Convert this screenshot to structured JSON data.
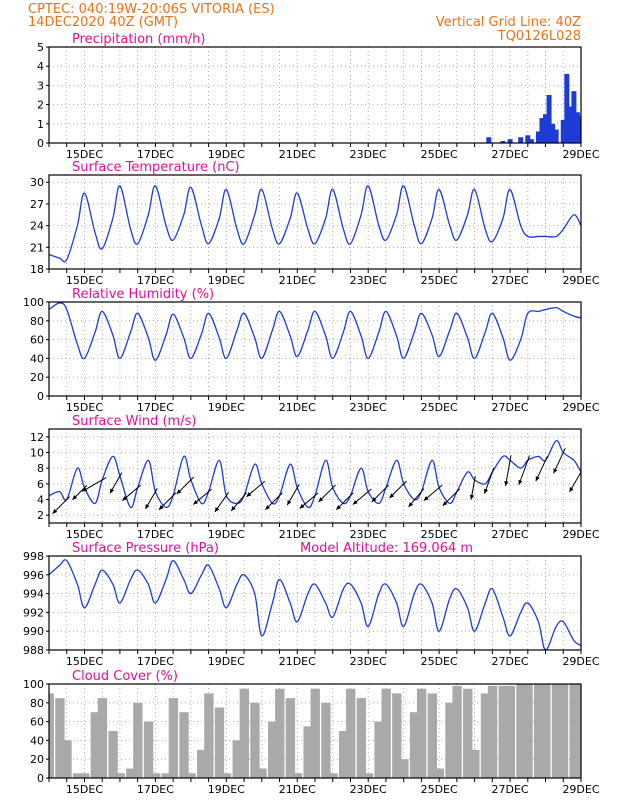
{
  "header": {
    "line1": "CPTEC:  040:19W-20:06S  VITORIA (ES)",
    "line2": "14DEC2020 40Z (GMT)",
    "grid_note": "Vertical Grid Line: 40Z",
    "product": "TQ0126L028"
  },
  "colors": {
    "series": "#1f3bd6",
    "cloud": "#a9a9a9",
    "grid": "#9a9a9a",
    "title": "#e0109a",
    "header": "#e8731a"
  },
  "chart_data": [
    {
      "type": "bar",
      "id": "precip",
      "title": "Precipitation (mm/h)",
      "ylim": [
        0,
        5
      ],
      "yticks": [
        0,
        1,
        2,
        3,
        4,
        5
      ],
      "xlim": [
        14,
        29
      ],
      "xticks": [
        15,
        17,
        19,
        21,
        23,
        25,
        27,
        29
      ],
      "xticklabels": [
        "15DEC",
        "17DEC",
        "19DEC",
        "21DEC",
        "23DEC",
        "25DEC",
        "27DEC",
        "29DEC"
      ],
      "x": [
        26.4,
        26.8,
        27.0,
        27.3,
        27.5,
        27.6,
        27.8,
        27.9,
        28.0,
        28.1,
        28.2,
        28.3,
        28.5,
        28.6,
        28.7,
        28.8,
        28.9,
        29.0
      ],
      "values": [
        0.3,
        0.1,
        0.2,
        0.3,
        0.4,
        0.2,
        0.6,
        1.3,
        1.5,
        2.5,
        1.0,
        0.7,
        1.2,
        3.6,
        1.9,
        2.7,
        1.6,
        1.4
      ]
    },
    {
      "type": "line",
      "id": "temp",
      "title": "Surface Temperature (nC)",
      "ylim": [
        18,
        31
      ],
      "yticks": [
        18,
        21,
        24,
        27,
        30
      ],
      "xlim": [
        14,
        29
      ],
      "xticks": [
        15,
        17,
        19,
        21,
        23,
        25,
        27,
        29
      ],
      "xticklabels": [
        "15DEC",
        "17DEC",
        "19DEC",
        "21DEC",
        "23DEC",
        "25DEC",
        "27DEC",
        "29DEC"
      ],
      "x": [
        14.0,
        14.3,
        14.5,
        14.8,
        15.0,
        15.3,
        15.5,
        15.8,
        16.0,
        16.3,
        16.5,
        16.8,
        17.0,
        17.3,
        17.5,
        17.8,
        18.0,
        18.3,
        18.5,
        18.8,
        19.0,
        19.3,
        19.5,
        19.8,
        20.0,
        20.3,
        20.5,
        20.8,
        21.0,
        21.3,
        21.5,
        21.8,
        22.0,
        22.3,
        22.5,
        22.8,
        23.0,
        23.3,
        23.5,
        23.8,
        24.0,
        24.3,
        24.5,
        24.8,
        25.0,
        25.3,
        25.5,
        25.8,
        26.0,
        26.3,
        26.5,
        26.8,
        27.0,
        27.3,
        27.5,
        27.8,
        28.0,
        28.3,
        28.5,
        28.8,
        29.0
      ],
      "values": [
        20.0,
        19.5,
        19.3,
        24.0,
        28.5,
        23.0,
        20.8,
        25.0,
        29.5,
        23.5,
        21.5,
        25.5,
        29.5,
        24.0,
        22.0,
        25.5,
        29.3,
        24.0,
        21.5,
        25.0,
        29.0,
        23.5,
        21.5,
        25.5,
        29.0,
        23.5,
        21.5,
        25.0,
        28.5,
        23.5,
        21.5,
        25.0,
        29.0,
        23.5,
        21.5,
        25.5,
        29.5,
        24.0,
        22.0,
        25.5,
        29.5,
        24.0,
        21.5,
        25.0,
        29.0,
        24.0,
        22.0,
        25.5,
        29.0,
        23.5,
        21.8,
        25.0,
        29.0,
        24.0,
        22.5,
        22.5,
        22.5,
        22.5,
        23.5,
        25.5,
        24.0
      ]
    },
    {
      "type": "line",
      "id": "rh",
      "title": "Relative Humidity (%)",
      "ylim": [
        0,
        100
      ],
      "yticks": [
        0,
        20,
        40,
        60,
        80,
        100
      ],
      "xlim": [
        14,
        29
      ],
      "xticks": [
        15,
        17,
        19,
        21,
        23,
        25,
        27,
        29
      ],
      "xticklabels": [
        "15DEC",
        "17DEC",
        "19DEC",
        "21DEC",
        "23DEC",
        "25DEC",
        "27DEC",
        "29DEC"
      ],
      "x": [
        14.0,
        14.3,
        14.5,
        14.8,
        15.0,
        15.3,
        15.5,
        15.8,
        16.0,
        16.3,
        16.5,
        16.8,
        17.0,
        17.3,
        17.5,
        17.8,
        18.0,
        18.3,
        18.5,
        18.8,
        19.0,
        19.3,
        19.5,
        19.8,
        20.0,
        20.3,
        20.5,
        20.8,
        21.0,
        21.3,
        21.5,
        21.8,
        22.0,
        22.3,
        22.5,
        22.8,
        23.0,
        23.3,
        23.5,
        23.8,
        24.0,
        24.3,
        24.5,
        24.8,
        25.0,
        25.3,
        25.5,
        25.8,
        26.0,
        26.3,
        26.5,
        26.8,
        27.0,
        27.3,
        27.5,
        27.8,
        28.0,
        28.3,
        28.5,
        28.8,
        29.0
      ],
      "values": [
        92.0,
        99.0,
        92.0,
        55.0,
        40.0,
        68.0,
        90.0,
        65.0,
        40.0,
        68.0,
        88.0,
        62.0,
        38.0,
        65.0,
        87.0,
        62.0,
        40.0,
        66.0,
        88.0,
        62.0,
        40.0,
        70.0,
        88.0,
        62.0,
        40.0,
        70.0,
        90.0,
        64.0,
        42.0,
        70.0,
        90.0,
        64.0,
        40.0,
        68.0,
        90.0,
        64.0,
        40.0,
        68.0,
        90.0,
        64.0,
        40.0,
        68.0,
        88.0,
        65.0,
        42.0,
        70.0,
        88.0,
        62.0,
        40.0,
        68.0,
        88.0,
        62.0,
        38.0,
        60.0,
        88.0,
        90.0,
        92.0,
        94.0,
        90.0,
        85.0,
        83.0
      ]
    },
    {
      "type": "line",
      "id": "wind",
      "title": "Surface Wind (m/s)",
      "ylim": [
        1,
        13
      ],
      "yticks": [
        2,
        4,
        6,
        8,
        10,
        12
      ],
      "xlim": [
        14,
        29
      ],
      "xticks": [
        15,
        17,
        19,
        21,
        23,
        25,
        27,
        29
      ],
      "xticklabels": [
        "15DEC",
        "17DEC",
        "19DEC",
        "21DEC",
        "23DEC",
        "25DEC",
        "27DEC",
        "29DEC"
      ],
      "x": [
        14.0,
        14.3,
        14.5,
        14.8,
        15.0,
        15.3,
        15.5,
        15.8,
        16.0,
        16.3,
        16.5,
        16.8,
        17.0,
        17.3,
        17.5,
        17.8,
        18.0,
        18.3,
        18.5,
        18.8,
        19.0,
        19.3,
        19.5,
        19.8,
        20.0,
        20.3,
        20.5,
        20.8,
        21.0,
        21.3,
        21.5,
        21.8,
        22.0,
        22.3,
        22.5,
        22.8,
        23.0,
        23.3,
        23.5,
        23.8,
        24.0,
        24.3,
        24.5,
        24.8,
        25.0,
        25.3,
        25.5,
        25.8,
        26.0,
        26.3,
        26.5,
        26.8,
        27.0,
        27.3,
        27.5,
        27.8,
        28.0,
        28.3,
        28.5,
        28.8,
        29.0
      ],
      "values": [
        4.5,
        5.0,
        4.0,
        8.0,
        5.5,
        3.5,
        6.5,
        9.5,
        7.0,
        3.0,
        5.5,
        9.0,
        5.0,
        3.0,
        4.5,
        9.5,
        6.5,
        3.5,
        5.0,
        9.0,
        4.5,
        3.5,
        4.5,
        8.5,
        6.0,
        3.5,
        4.5,
        8.5,
        5.5,
        3.0,
        4.5,
        9.0,
        5.5,
        3.5,
        4.5,
        8.0,
        5.0,
        3.5,
        5.5,
        9.0,
        6.0,
        4.0,
        5.0,
        9.0,
        5.5,
        3.5,
        5.0,
        7.5,
        6.5,
        6.0,
        7.5,
        9.5,
        9.0,
        8.0,
        9.0,
        9.5,
        9.0,
        11.5,
        10.0,
        9.0,
        7.5
      ],
      "arrows": [
        {
          "x": 14.5,
          "dir": 225,
          "speed": 5
        },
        {
          "x": 15.0,
          "dir": 225,
          "speed": 4
        },
        {
          "x": 15.5,
          "dir": 240,
          "speed": 6
        },
        {
          "x": 16.0,
          "dir": 210,
          "speed": 5
        },
        {
          "x": 16.5,
          "dir": 230,
          "speed": 5
        },
        {
          "x": 17.0,
          "dir": 210,
          "speed": 5
        },
        {
          "x": 17.5,
          "dir": 225,
          "speed": 5
        },
        {
          "x": 18.0,
          "dir": 225,
          "speed": 5
        },
        {
          "x": 18.5,
          "dir": 230,
          "speed": 5
        },
        {
          "x": 19.0,
          "dir": 215,
          "speed": 5
        },
        {
          "x": 19.5,
          "dir": 220,
          "speed": 5
        },
        {
          "x": 20.0,
          "dir": 230,
          "speed": 5
        },
        {
          "x": 20.5,
          "dir": 225,
          "speed": 5
        },
        {
          "x": 21.0,
          "dir": 210,
          "speed": 5
        },
        {
          "x": 21.5,
          "dir": 230,
          "speed": 5
        },
        {
          "x": 22.0,
          "dir": 225,
          "speed": 5
        },
        {
          "x": 22.5,
          "dir": 225,
          "speed": 5
        },
        {
          "x": 23.0,
          "dir": 230,
          "speed": 5
        },
        {
          "x": 23.5,
          "dir": 225,
          "speed": 5
        },
        {
          "x": 24.0,
          "dir": 225,
          "speed": 5
        },
        {
          "x": 24.5,
          "dir": 220,
          "speed": 5
        },
        {
          "x": 25.0,
          "dir": 230,
          "speed": 5
        },
        {
          "x": 25.5,
          "dir": 225,
          "speed": 5
        },
        {
          "x": 26.0,
          "dir": 190,
          "speed": 5
        },
        {
          "x": 26.5,
          "dir": 200,
          "speed": 6
        },
        {
          "x": 27.0,
          "dir": 190,
          "speed": 7
        },
        {
          "x": 27.5,
          "dir": 200,
          "speed": 7
        },
        {
          "x": 28.0,
          "dir": 205,
          "speed": 6
        },
        {
          "x": 28.5,
          "dir": 205,
          "speed": 6
        },
        {
          "x": 29.0,
          "dir": 210,
          "speed": 6
        }
      ]
    },
    {
      "type": "line",
      "id": "pressure",
      "title": "Surface Pressure (hPa)",
      "annotation": "Model Altitude: 169.064 m",
      "ylim": [
        988,
        998
      ],
      "yticks": [
        988,
        990,
        992,
        994,
        996,
        998
      ],
      "xlim": [
        14,
        29
      ],
      "xticks": [
        15,
        17,
        19,
        21,
        23,
        25,
        27,
        29
      ],
      "xticklabels": [
        "15DEC",
        "17DEC",
        "19DEC",
        "21DEC",
        "23DEC",
        "25DEC",
        "27DEC",
        "29DEC"
      ],
      "x": [
        14.0,
        14.3,
        14.5,
        14.8,
        15.0,
        15.3,
        15.5,
        15.8,
        16.0,
        16.3,
        16.5,
        16.8,
        17.0,
        17.3,
        17.5,
        17.8,
        18.0,
        18.3,
        18.5,
        18.8,
        19.0,
        19.3,
        19.5,
        19.8,
        20.0,
        20.3,
        20.5,
        20.8,
        21.0,
        21.3,
        21.5,
        21.8,
        22.0,
        22.3,
        22.5,
        22.8,
        23.0,
        23.3,
        23.5,
        23.8,
        24.0,
        24.3,
        24.5,
        24.8,
        25.0,
        25.3,
        25.5,
        25.8,
        26.0,
        26.3,
        26.5,
        26.8,
        27.0,
        27.3,
        27.5,
        27.8,
        28.0,
        28.3,
        28.5,
        28.8,
        29.0
      ],
      "values": [
        996.0,
        997.0,
        997.5,
        995.0,
        992.5,
        995.0,
        996.5,
        995.0,
        993.0,
        995.5,
        996.5,
        995.0,
        993.0,
        995.5,
        997.5,
        995.5,
        994.0,
        996.0,
        997.0,
        994.5,
        992.5,
        995.0,
        996.0,
        994.0,
        989.5,
        993.0,
        995.5,
        993.0,
        991.0,
        994.0,
        995.0,
        993.0,
        991.5,
        994.5,
        995.0,
        993.0,
        990.5,
        994.0,
        995.0,
        993.0,
        990.5,
        994.0,
        995.0,
        993.0,
        990.0,
        993.5,
        994.5,
        992.5,
        990.0,
        993.0,
        994.5,
        991.5,
        989.5,
        992.0,
        993.0,
        991.0,
        988.0,
        990.5,
        991.0,
        989.0,
        988.5
      ]
    },
    {
      "type": "bar",
      "id": "cloud",
      "title": "Cloud Cover (%)",
      "ylim": [
        0,
        100
      ],
      "yticks": [
        0,
        20,
        40,
        60,
        80,
        100
      ],
      "xlim": [
        14,
        29
      ],
      "xticks": [
        15,
        17,
        19,
        21,
        23,
        25,
        27,
        29
      ],
      "xticklabels": [
        "15DEC",
        "17DEC",
        "19DEC",
        "21DEC",
        "23DEC",
        "25DEC",
        "27DEC",
        "29DEC"
      ],
      "x": [
        14.0,
        14.3,
        14.5,
        14.8,
        15.0,
        15.3,
        15.5,
        15.8,
        16.0,
        16.3,
        16.5,
        16.8,
        17.0,
        17.3,
        17.5,
        17.8,
        18.0,
        18.3,
        18.5,
        18.8,
        19.0,
        19.3,
        19.5,
        19.8,
        20.0,
        20.3,
        20.5,
        20.8,
        21.0,
        21.3,
        21.5,
        21.8,
        22.0,
        22.3,
        22.5,
        22.8,
        23.0,
        23.3,
        23.5,
        23.8,
        24.0,
        24.3,
        24.5,
        24.8,
        25.0,
        25.3,
        25.5,
        25.8,
        26.0,
        26.3,
        26.5,
        26.8,
        27.0,
        27.3,
        27.5,
        27.8,
        28.0,
        28.3,
        28.5,
        28.8,
        29.0
      ],
      "values": [
        90.0,
        85.0,
        40.0,
        5.0,
        5.0,
        70.0,
        85.0,
        50.0,
        5.0,
        10.0,
        80.0,
        60.0,
        5.0,
        5.0,
        85.0,
        70.0,
        5.0,
        30.0,
        90.0,
        75.0,
        5.0,
        40.0,
        95.0,
        80.0,
        10.0,
        60.0,
        95.0,
        85.0,
        5.0,
        55.0,
        95.0,
        80.0,
        5.0,
        50.0,
        95.0,
        85.0,
        5.0,
        60.0,
        95.0,
        90.0,
        20.0,
        70.0,
        95.0,
        90.0,
        10.0,
        80.0,
        98.0,
        95.0,
        30.0,
        90.0,
        98.0,
        98.0,
        98.0,
        100.0,
        100.0,
        100.0,
        100.0,
        100.0,
        100.0,
        100.0,
        100.0
      ]
    }
  ]
}
